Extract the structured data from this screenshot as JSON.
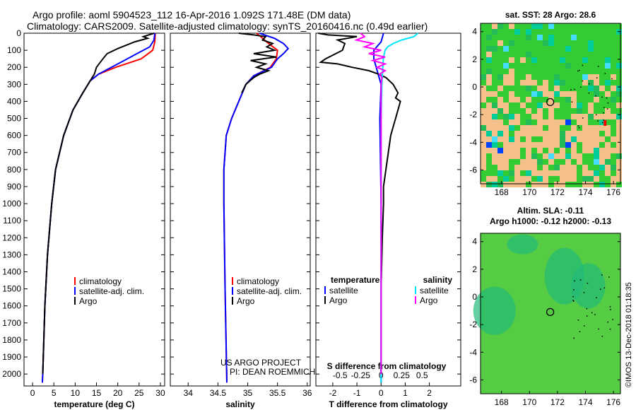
{
  "header": {
    "line1": "Argo profile: aoml 5904523_112 16-Apr-2016 1.092S 171.48E (DM data)",
    "line2": "Climatology: CARS2009. Satellite-adjusted climatology: synTS_20160416.nc (0.49d earlier)"
  },
  "colors": {
    "climatology": "#ff0000",
    "satellite": "#0000ff",
    "argo": "#000000",
    "sat_salinity": "#00e5ff",
    "argo_salinity": "#ff00ff",
    "land": "#f5c08a",
    "ocean": "#33cc33"
  },
  "chart_data": [
    {
      "type": "line",
      "id": "temperature",
      "xlabel": "temperature (deg C)",
      "ylabel": "",
      "xlim": [
        -2,
        31
      ],
      "ylim": [
        2070,
        0
      ],
      "x_ticks": [
        0,
        5,
        10,
        15,
        20,
        25,
        30
      ],
      "y_ticks": [
        0,
        100,
        200,
        300,
        400,
        500,
        600,
        700,
        800,
        900,
        1000,
        1100,
        1200,
        1300,
        1400,
        1500,
        1600,
        1700,
        1800,
        1900,
        2000
      ],
      "legend": [
        "climatology",
        "satellite-adj. clim.",
        "Argo"
      ],
      "series": [
        {
          "name": "climatology",
          "depth": [
            0,
            50,
            100,
            150,
            200,
            240,
            280,
            350,
            450,
            600,
            800,
            1000,
            1300,
            1600,
            2000,
            2050
          ],
          "values": [
            28.8,
            28.7,
            28.2,
            25.5,
            19.5,
            15.5,
            13.5,
            11.8,
            9.5,
            7.3,
            5.4,
            4.5,
            3.5,
            2.9,
            2.4,
            2.3
          ]
        },
        {
          "name": "satellite-adj. clim.",
          "depth": [
            0,
            40,
            80,
            120,
            160,
            200,
            240,
            280,
            350,
            450,
            600,
            800,
            1000,
            1300,
            1600,
            2000,
            2050
          ],
          "values": [
            28.7,
            28.5,
            27.5,
            24.5,
            21.5,
            18.5,
            15.5,
            13.5,
            11.8,
            9.5,
            7.3,
            5.4,
            4.5,
            3.5,
            2.9,
            2.4,
            2.3
          ]
        },
        {
          "name": "Argo",
          "depth": [
            0,
            20,
            30,
            50,
            70,
            90,
            120,
            150,
            200,
            240,
            280,
            350,
            450,
            600,
            800,
            1000,
            1300,
            1600,
            2000
          ],
          "values": [
            28.5,
            26,
            27,
            24,
            22,
            20,
            17.5,
            16.5,
            15,
            14.5,
            13.5,
            11.8,
            9.5,
            7.3,
            5.4,
            4.5,
            3.5,
            2.9,
            2.4
          ]
        }
      ]
    },
    {
      "type": "line",
      "id": "salinity",
      "xlabel": "salinity",
      "xlim": [
        33.7,
        36.05
      ],
      "ylim": [
        2070,
        0
      ],
      "x_ticks": [
        34,
        34.5,
        35,
        35.5,
        36
      ],
      "legend": [
        "climatology",
        "satellite-adj. clim.",
        "Argo"
      ],
      "series": [
        {
          "name": "climatology",
          "depth": [
            0,
            60,
            100,
            150,
            200,
            250,
            300,
            400,
            500,
            600,
            800,
            1000,
            1500,
            2050
          ],
          "values": [
            35.15,
            35.35,
            35.5,
            35.48,
            35.38,
            35.1,
            34.97,
            34.85,
            34.73,
            34.64,
            34.6,
            34.6,
            34.62,
            34.65
          ]
        },
        {
          "name": "satellite-adj. clim.",
          "depth": [
            0,
            30,
            60,
            90,
            120,
            150,
            200,
            250,
            300,
            400,
            500,
            600,
            800,
            1000,
            1500,
            2050
          ],
          "values": [
            35.2,
            35.45,
            35.6,
            35.68,
            35.6,
            35.5,
            35.4,
            35.1,
            34.97,
            34.85,
            34.73,
            34.64,
            34.6,
            34.6,
            34.62,
            34.65
          ]
        },
        {
          "name": "Argo",
          "depth": [
            0,
            10,
            20,
            40,
            60,
            80,
            100,
            120,
            140,
            160,
            180,
            200,
            220,
            240,
            260,
            300,
            350
          ],
          "values": [
            34.85,
            35.1,
            35.3,
            35.25,
            35.42,
            35.32,
            35.45,
            35.1,
            35.48,
            35.05,
            35.3,
            35.15,
            35.35,
            35.2,
            35.1,
            34.97,
            34.9
          ]
        }
      ],
      "annotations": [
        "US ARGO PROJECT",
        "PI: DEAN ROEMMICH"
      ]
    },
    {
      "type": "line",
      "id": "difference",
      "xlabel": "T difference from climatology",
      "xlabel_top": "S difference from climatology",
      "xlim": [
        -2.7,
        3.3
      ],
      "ylim": [
        2070,
        0
      ],
      "x_ticks": [
        -2,
        -1,
        0,
        1,
        2
      ],
      "x_ticks_top": [
        -0.5,
        -0.25,
        0,
        0.25,
        0.5
      ],
      "legend_left": [
        "temperature",
        "satellite",
        "Argo"
      ],
      "legend_right": [
        "salinity",
        "satellite",
        "Argo"
      ],
      "series": [
        {
          "name": "T satellite",
          "depth": [
            0,
            50,
            100,
            150,
            200,
            250,
            300,
            500,
            1000,
            1500,
            2050
          ],
          "values": [
            0.1,
            0,
            -0.3,
            -0.3,
            -0.2,
            -0.1,
            0,
            -0.05,
            0,
            0,
            0
          ]
        },
        {
          "name": "T Argo",
          "depth": [
            0,
            10,
            20,
            40,
            60,
            100,
            150,
            170,
            180,
            200,
            220,
            240,
            260,
            300,
            350,
            380,
            400,
            450,
            500,
            550,
            600,
            700,
            800,
            900,
            1000,
            1200,
            1500,
            2000
          ],
          "values": [
            -2.6,
            -2.2,
            -1.0,
            -1.8,
            -1.5,
            -1.6,
            -2.3,
            -2.5,
            -1.8,
            -1.2,
            -0.5,
            -0.1,
            0.2,
            0.5,
            0.7,
            0.6,
            0.8,
            0.7,
            0.6,
            0.5,
            0.4,
            0.3,
            0.2,
            0.1,
            0.1,
            0.05,
            0,
            0
          ]
        },
        {
          "name": "S satellite",
          "depth": [
            0,
            20,
            40,
            60,
            80,
            100,
            140,
            200,
            300,
            500,
            1000,
            1500,
            2050
          ],
          "values": [
            0.45,
            0.4,
            0.25,
            0.15,
            0.08,
            0.05,
            0.03,
            0.02,
            0.01,
            0,
            0,
            0,
            0
          ]
        },
        {
          "name": "S Argo",
          "depth": [
            0,
            20,
            40,
            60,
            80,
            100,
            120,
            140,
            160,
            180,
            200,
            220,
            240,
            260,
            300,
            400,
            500,
            1000,
            2000
          ],
          "values": [
            -0.25,
            -0.2,
            -0.3,
            -0.1,
            -0.2,
            0,
            -0.15,
            0.05,
            -0.1,
            0.05,
            -0.05,
            0.05,
            -0.02,
            0.01,
            0,
            0,
            0,
            0,
            0
          ]
        }
      ]
    },
    {
      "type": "heatmap",
      "id": "sst_map",
      "title": "sat. SST: 28 Argo: 28.6",
      "xlim": [
        166.5,
        176.5
      ],
      "ylim": [
        -7,
        4.6
      ],
      "x_ticks": [
        168,
        170,
        172,
        174,
        176
      ],
      "y_ticks": [
        4,
        2,
        0,
        -2,
        -4,
        -6
      ],
      "marker": {
        "lon": 171.48,
        "lat": -1.092
      }
    },
    {
      "type": "heatmap",
      "id": "sla_map",
      "title_line1": "Altim. SLA: -0.11",
      "title_line2": "Argo h1000: -0.12 h2000: -0.13",
      "xlim": [
        166.5,
        176.5
      ],
      "ylim": [
        -7,
        4.6
      ],
      "x_ticks": [
        168,
        170,
        172,
        174,
        176
      ],
      "y_ticks": [
        4,
        2,
        0,
        -2,
        -4,
        -6
      ],
      "marker": {
        "lon": 171.48,
        "lat": -1.092
      }
    }
  ],
  "footer": {
    "credit": "©IMOS 13-Dec-2018 01:18:35"
  }
}
